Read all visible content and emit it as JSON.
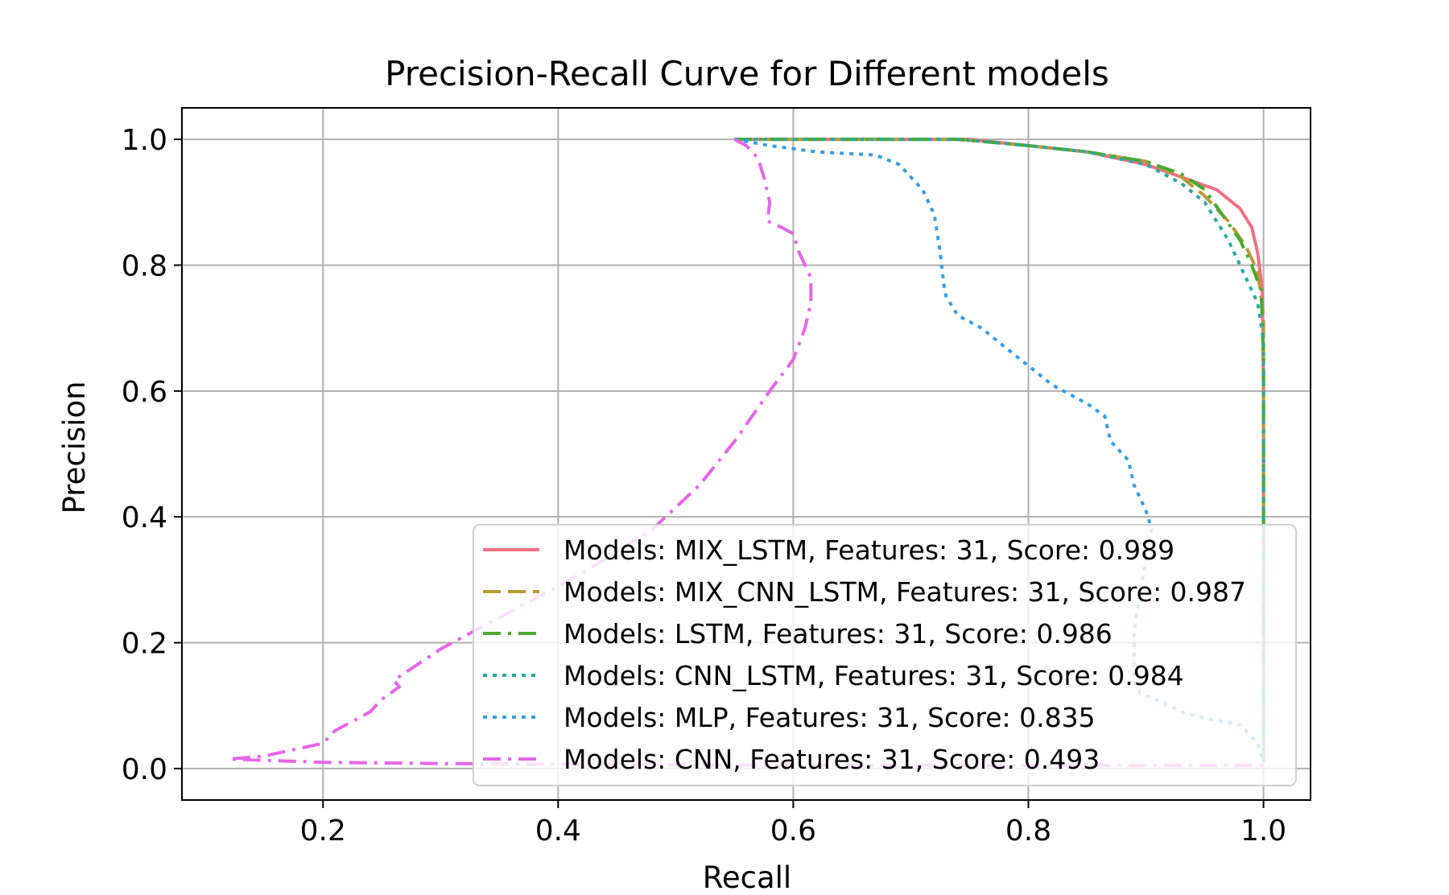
{
  "chart_data": {
    "type": "line",
    "title": "Precision-Recall Curve for Different models",
    "xlabel": "Recall",
    "ylabel": "Precision",
    "xlim": [
      0.08,
      1.04
    ],
    "ylim": [
      -0.05,
      1.05
    ],
    "xticks": [
      "0.2",
      "0.4",
      "0.6",
      "0.8",
      "1.0"
    ],
    "yticks": [
      "0.0",
      "0.2",
      "0.4",
      "0.6",
      "0.8",
      "1.0"
    ],
    "grid": true,
    "legend_position": "lower-right",
    "series": [
      {
        "name": "Models: MIX_LSTM, Features: 31, Score: 0.989",
        "color": "#f07084",
        "dash": "solid",
        "points": [
          [
            0.55,
            1.0
          ],
          [
            0.7,
            1.0
          ],
          [
            0.75,
            1.0
          ],
          [
            0.8,
            0.99
          ],
          [
            0.85,
            0.98
          ],
          [
            0.9,
            0.96
          ],
          [
            0.93,
            0.94
          ],
          [
            0.96,
            0.92
          ],
          [
            0.98,
            0.89
          ],
          [
            0.99,
            0.86
          ],
          [
            0.995,
            0.82
          ],
          [
            0.999,
            0.76
          ],
          [
            1.0,
            0.6
          ],
          [
            1.0,
            0.4
          ],
          [
            1.0,
            0.2
          ],
          [
            1.0,
            0.01
          ]
        ]
      },
      {
        "name": "Models: MIX_CNN_LSTM, Features: 31, Score: 0.987",
        "color": "#b89a3a",
        "dash": "dashed",
        "points": [
          [
            0.55,
            1.0
          ],
          [
            0.74,
            1.0
          ],
          [
            0.8,
            0.99
          ],
          [
            0.85,
            0.98
          ],
          [
            0.9,
            0.965
          ],
          [
            0.93,
            0.94
          ],
          [
            0.95,
            0.91
          ],
          [
            0.97,
            0.87
          ],
          [
            0.985,
            0.83
          ],
          [
            0.995,
            0.79
          ],
          [
            1.0,
            0.72
          ],
          [
            1.0,
            0.5
          ],
          [
            1.0,
            0.3
          ],
          [
            1.0,
            0.01
          ]
        ]
      },
      {
        "name": "Models: LSTM, Features: 31, Score: 0.986",
        "color": "#4aa832",
        "dash": "dashdot",
        "points": [
          [
            0.55,
            1.0
          ],
          [
            0.74,
            1.0
          ],
          [
            0.8,
            0.99
          ],
          [
            0.85,
            0.98
          ],
          [
            0.9,
            0.965
          ],
          [
            0.93,
            0.945
          ],
          [
            0.95,
            0.92
          ],
          [
            0.965,
            0.88
          ],
          [
            0.98,
            0.84
          ],
          [
            0.99,
            0.8
          ],
          [
            0.998,
            0.76
          ],
          [
            1.0,
            0.65
          ],
          [
            1.0,
            0.4
          ],
          [
            1.0,
            0.2
          ],
          [
            1.0,
            0.01
          ]
        ]
      },
      {
        "name": "Models: CNN_LSTM, Features: 31, Score: 0.984",
        "color": "#2aa8a0",
        "dash": "dotted",
        "points": [
          [
            0.55,
            1.0
          ],
          [
            0.74,
            1.0
          ],
          [
            0.8,
            0.99
          ],
          [
            0.85,
            0.98
          ],
          [
            0.9,
            0.96
          ],
          [
            0.93,
            0.93
          ],
          [
            0.95,
            0.9
          ],
          [
            0.97,
            0.84
          ],
          [
            0.985,
            0.78
          ],
          [
            0.995,
            0.74
          ],
          [
            1.0,
            0.68
          ],
          [
            1.0,
            0.5
          ],
          [
            1.0,
            0.3
          ],
          [
            1.0,
            0.01
          ]
        ]
      },
      {
        "name": "Models: MLP, Features: 31, Score: 0.835",
        "color": "#3a9be0",
        "dash": "dotted",
        "points": [
          [
            0.55,
            1.0
          ],
          [
            0.58,
            0.99
          ],
          [
            0.62,
            0.98
          ],
          [
            0.67,
            0.975
          ],
          [
            0.69,
            0.96
          ],
          [
            0.71,
            0.92
          ],
          [
            0.72,
            0.88
          ],
          [
            0.725,
            0.82
          ],
          [
            0.728,
            0.77
          ],
          [
            0.73,
            0.75
          ],
          [
            0.74,
            0.72
          ],
          [
            0.76,
            0.7
          ],
          [
            0.78,
            0.67
          ],
          [
            0.8,
            0.64
          ],
          [
            0.82,
            0.61
          ],
          [
            0.85,
            0.58
          ],
          [
            0.865,
            0.56
          ],
          [
            0.87,
            0.52
          ],
          [
            0.885,
            0.49
          ],
          [
            0.89,
            0.45
          ],
          [
            0.9,
            0.41
          ],
          [
            0.905,
            0.38
          ],
          [
            0.9,
            0.33
          ],
          [
            0.895,
            0.28
          ],
          [
            0.89,
            0.22
          ],
          [
            0.89,
            0.18
          ],
          [
            0.89,
            0.14
          ],
          [
            0.895,
            0.12
          ],
          [
            0.92,
            0.1
          ],
          [
            0.93,
            0.09
          ],
          [
            0.95,
            0.08
          ],
          [
            0.98,
            0.07
          ],
          [
            0.995,
            0.04
          ],
          [
            1.0,
            0.01
          ]
        ]
      },
      {
        "name": "Models: CNN, Features: 31, Score: 0.493",
        "color": "#e466e8",
        "dash": "dashdot",
        "points": [
          [
            0.55,
            1.0
          ],
          [
            0.56,
            0.99
          ],
          [
            0.57,
            0.97
          ],
          [
            0.575,
            0.94
          ],
          [
            0.58,
            0.9
          ],
          [
            0.578,
            0.87
          ],
          [
            0.59,
            0.86
          ],
          [
            0.6,
            0.85
          ],
          [
            0.605,
            0.82
          ],
          [
            0.615,
            0.78
          ],
          [
            0.615,
            0.74
          ],
          [
            0.61,
            0.7
          ],
          [
            0.6,
            0.65
          ],
          [
            0.58,
            0.6
          ],
          [
            0.55,
            0.52
          ],
          [
            0.52,
            0.45
          ],
          [
            0.48,
            0.38
          ],
          [
            0.42,
            0.31
          ],
          [
            0.36,
            0.25
          ],
          [
            0.3,
            0.19
          ],
          [
            0.26,
            0.14
          ],
          [
            0.265,
            0.13
          ],
          [
            0.25,
            0.11
          ],
          [
            0.24,
            0.09
          ],
          [
            0.21,
            0.06
          ],
          [
            0.2,
            0.04
          ],
          [
            0.15,
            0.02
          ],
          [
            0.12,
            0.015
          ],
          [
            0.2,
            0.01
          ],
          [
            0.3,
            0.008
          ],
          [
            0.4,
            0.007
          ],
          [
            0.5,
            0.006
          ],
          [
            0.6,
            0.005
          ],
          [
            0.7,
            0.005
          ],
          [
            0.8,
            0.005
          ],
          [
            0.9,
            0.005
          ],
          [
            1.0,
            0.005
          ]
        ]
      }
    ]
  }
}
